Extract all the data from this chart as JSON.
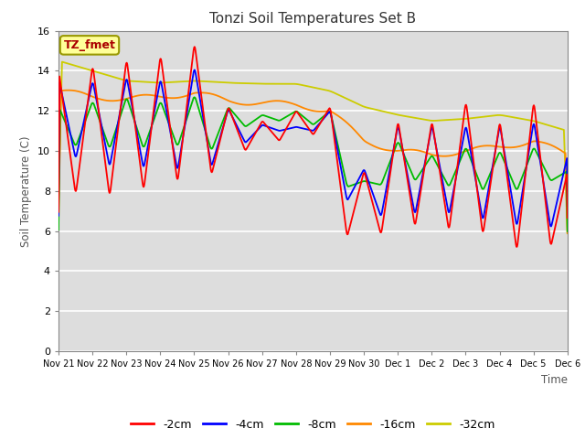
{
  "title": "Tonzi Soil Temperatures Set B",
  "xlabel": "Time",
  "ylabel": "Soil Temperature (C)",
  "ylim": [
    0,
    16
  ],
  "yticks": [
    0,
    2,
    4,
    6,
    8,
    10,
    12,
    14,
    16
  ],
  "plot_bg_color": "#dddddd",
  "fig_bg_color": "#ffffff",
  "grid_color": "#ffffff",
  "label_box_text": "TZ_fmet",
  "label_box_color": "#ffff99",
  "label_box_edge": "#999900",
  "label_text_color": "#aa0000",
  "series_colors": {
    "-2cm": "#ff0000",
    "-4cm": "#0000ff",
    "-8cm": "#00bb00",
    "-16cm": "#ff8800",
    "-32cm": "#cccc00"
  },
  "x_tick_labels": [
    "Nov 21",
    "Nov 22",
    "Nov 23",
    "Nov 24",
    "Nov 25",
    "Nov 26",
    "Nov 27",
    "Nov 28",
    "Nov 29",
    "Nov 30",
    "Dec 1",
    "Dec 2",
    "Dec 3",
    "Dec 4",
    "Dec 5",
    "Dec 6"
  ],
  "n_points": 1000,
  "legend_entries": [
    "-2cm",
    "-4cm",
    "-8cm",
    "-16cm",
    "-32cm"
  ]
}
